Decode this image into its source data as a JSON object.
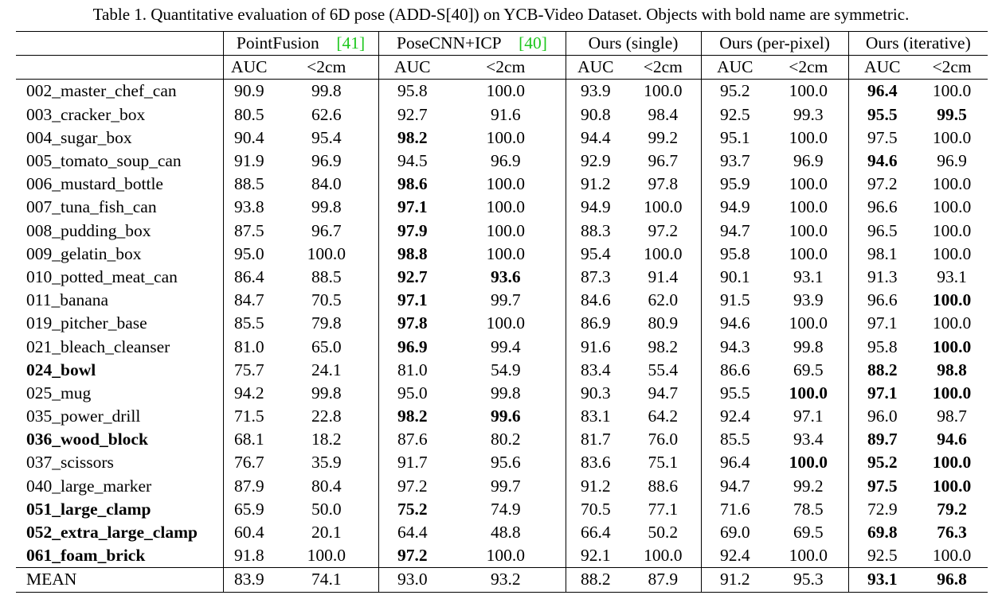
{
  "caption": "Table 1. Quantitative evaluation of 6D pose (ADD-S[40]) on YCB-Video Dataset. Objects with bold name are symmetric.",
  "table": {
    "groups": [
      {
        "name": "PointFusion",
        "ref": "[41]"
      },
      {
        "name": "PoseCNN+ICP",
        "ref": "[40]"
      },
      {
        "name": "Ours (single)"
      },
      {
        "name": "Ours (per-pixel)"
      },
      {
        "name": "Ours (iterative)"
      }
    ],
    "subheaders": [
      "AUC",
      "<2cm",
      "AUC",
      "<2cm",
      "AUC",
      "<2cm",
      "AUC",
      "<2cm",
      "AUC",
      "<2cm"
    ],
    "rows": [
      {
        "name": "002_master_chef_can",
        "bold": false,
        "values": [
          "90.9",
          "99.8",
          "95.8",
          "100.0",
          "93.9",
          "100.0",
          "95.2",
          "100.0",
          "96.4",
          "100.0"
        ],
        "bold_values": [
          8
        ]
      },
      {
        "name": "003_cracker_box",
        "bold": false,
        "values": [
          "80.5",
          "62.6",
          "92.7",
          "91.6",
          "90.8",
          "98.4",
          "92.5",
          "99.3",
          "95.5",
          "99.5"
        ],
        "bold_values": [
          8,
          9
        ]
      },
      {
        "name": "004_sugar_box",
        "bold": false,
        "values": [
          "90.4",
          "95.4",
          "98.2",
          "100.0",
          "94.4",
          "99.2",
          "95.1",
          "100.0",
          "97.5",
          "100.0"
        ],
        "bold_values": [
          2
        ]
      },
      {
        "name": "005_tomato_soup_can",
        "bold": false,
        "values": [
          "91.9",
          "96.9",
          "94.5",
          "96.9",
          "92.9",
          "96.7",
          "93.7",
          "96.9",
          "94.6",
          "96.9"
        ],
        "bold_values": [
          8
        ]
      },
      {
        "name": "006_mustard_bottle",
        "bold": false,
        "values": [
          "88.5",
          "84.0",
          "98.6",
          "100.0",
          "91.2",
          "97.8",
          "95.9",
          "100.0",
          "97.2",
          "100.0"
        ],
        "bold_values": [
          2
        ]
      },
      {
        "name": "007_tuna_fish_can",
        "bold": false,
        "values": [
          "93.8",
          "99.8",
          "97.1",
          "100.0",
          "94.9",
          "100.0",
          "94.9",
          "100.0",
          "96.6",
          "100.0"
        ],
        "bold_values": [
          2
        ]
      },
      {
        "name": "008_pudding_box",
        "bold": false,
        "values": [
          "87.5",
          "96.7",
          "97.9",
          "100.0",
          "88.3",
          "97.2",
          "94.7",
          "100.0",
          "96.5",
          "100.0"
        ],
        "bold_values": [
          2
        ]
      },
      {
        "name": "009_gelatin_box",
        "bold": false,
        "values": [
          "95.0",
          "100.0",
          "98.8",
          "100.0",
          "95.4",
          "100.0",
          "95.8",
          "100.0",
          "98.1",
          "100.0"
        ],
        "bold_values": [
          2
        ]
      },
      {
        "name": "010_potted_meat_can",
        "bold": false,
        "values": [
          "86.4",
          "88.5",
          "92.7",
          "93.6",
          "87.3",
          "91.4",
          "90.1",
          "93.1",
          "91.3",
          "93.1"
        ],
        "bold_values": [
          2,
          3
        ]
      },
      {
        "name": "011_banana",
        "bold": false,
        "values": [
          "84.7",
          "70.5",
          "97.1",
          "99.7",
          "84.6",
          "62.0",
          "91.5",
          "93.9",
          "96.6",
          "100.0"
        ],
        "bold_values": [
          2,
          9
        ]
      },
      {
        "name": "019_pitcher_base",
        "bold": false,
        "values": [
          "85.5",
          "79.8",
          "97.8",
          "100.0",
          "86.9",
          "80.9",
          "94.6",
          "100.0",
          "97.1",
          "100.0"
        ],
        "bold_values": [
          2
        ]
      },
      {
        "name": "021_bleach_cleanser",
        "bold": false,
        "values": [
          "81.0",
          "65.0",
          "96.9",
          "99.4",
          "91.6",
          "98.2",
          "94.3",
          "99.8",
          "95.8",
          "100.0"
        ],
        "bold_values": [
          2,
          9
        ]
      },
      {
        "name": "024_bowl",
        "bold": true,
        "values": [
          "75.7",
          "24.1",
          "81.0",
          "54.9",
          "83.4",
          "55.4",
          "86.6",
          "69.5",
          "88.2",
          "98.8"
        ],
        "bold_values": [
          8,
          9
        ]
      },
      {
        "name": "025_mug",
        "bold": false,
        "values": [
          "94.2",
          "99.8",
          "95.0",
          "99.8",
          "90.3",
          "94.7",
          "95.5",
          "100.0",
          "97.1",
          "100.0"
        ],
        "bold_values": [
          7,
          8,
          9
        ]
      },
      {
        "name": "035_power_drill",
        "bold": false,
        "values": [
          "71.5",
          "22.8",
          "98.2",
          "99.6",
          "83.1",
          "64.2",
          "92.4",
          "97.1",
          "96.0",
          "98.7"
        ],
        "bold_values": [
          2,
          3
        ]
      },
      {
        "name": "036_wood_block",
        "bold": true,
        "values": [
          "68.1",
          "18.2",
          "87.6",
          "80.2",
          "81.7",
          "76.0",
          "85.5",
          "93.4",
          "89.7",
          "94.6"
        ],
        "bold_values": [
          8,
          9
        ]
      },
      {
        "name": "037_scissors",
        "bold": false,
        "values": [
          "76.7",
          "35.9",
          "91.7",
          "95.6",
          "83.6",
          "75.1",
          "96.4",
          "100.0",
          "95.2",
          "100.0"
        ],
        "bold_values": [
          7,
          8,
          9
        ]
      },
      {
        "name": "040_large_marker",
        "bold": false,
        "values": [
          "87.9",
          "80.4",
          "97.2",
          "99.7",
          "91.2",
          "88.6",
          "94.7",
          "99.2",
          "97.5",
          "100.0"
        ],
        "bold_values": [
          8,
          9
        ]
      },
      {
        "name": "051_large_clamp",
        "bold": true,
        "values": [
          "65.9",
          "50.0",
          "75.2",
          "74.9",
          "70.5",
          "77.1",
          "71.6",
          "78.5",
          "72.9",
          "79.2"
        ],
        "bold_values": [
          2,
          9
        ]
      },
      {
        "name": "052_extra_large_clamp",
        "bold": true,
        "values": [
          "60.4",
          "20.1",
          "64.4",
          "48.8",
          "66.4",
          "50.2",
          "69.0",
          "69.5",
          "69.8",
          "76.3"
        ],
        "bold_values": [
          8,
          9
        ]
      },
      {
        "name": "061_foam_brick",
        "bold": true,
        "values": [
          "91.8",
          "100.0",
          "97.2",
          "100.0",
          "92.1",
          "100.0",
          "92.4",
          "100.0",
          "92.5",
          "100.0"
        ],
        "bold_values": [
          2
        ]
      }
    ],
    "mean": {
      "name": "MEAN",
      "values": [
        "83.9",
        "74.1",
        "93.0",
        "93.2",
        "88.2",
        "87.9",
        "91.2",
        "95.3",
        "93.1",
        "96.8"
      ],
      "bold_values": [
        8,
        9
      ]
    }
  }
}
